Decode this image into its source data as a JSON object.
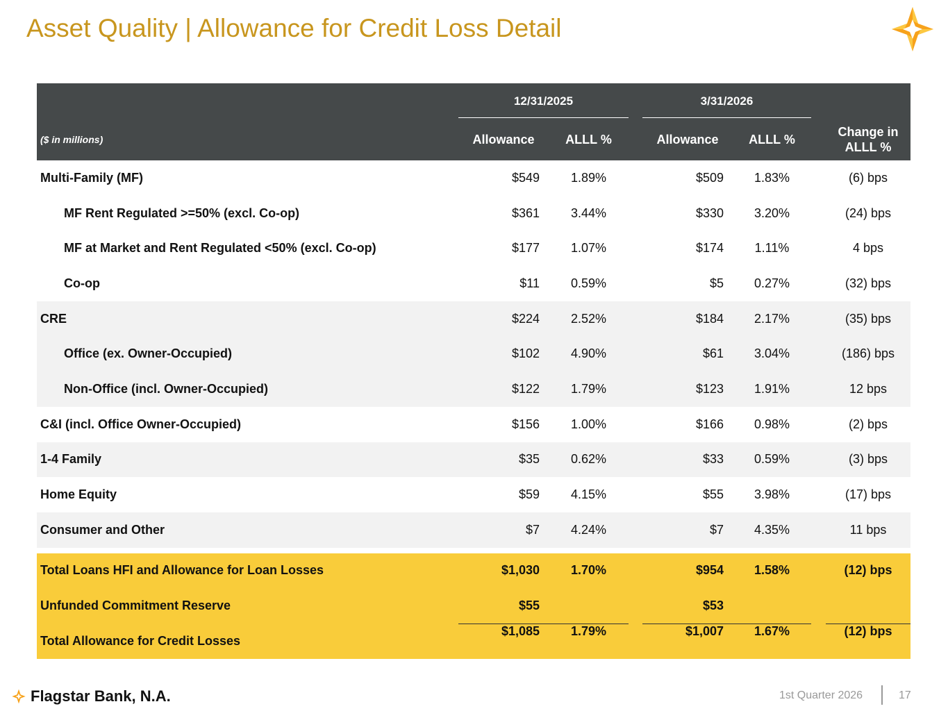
{
  "title": "Asset Quality | Allowance for Credit Loss Detail",
  "header": {
    "units": "($ in millions)",
    "period1": "12/31/2025",
    "period2": "3/31/2026",
    "allowance": "Allowance",
    "alll": "ALLL %",
    "change_line1": "Change in",
    "change_line2": "ALLL %"
  },
  "rows": [
    {
      "label": "Multi-Family (MF)",
      "a1": "$549",
      "p1": "1.89%",
      "a2": "$509",
      "p2": "1.83%",
      "chg": "(6) bps"
    },
    {
      "label": "MF Rent Regulated >=50% (excl. Co-op)",
      "a1": "$361",
      "p1": "3.44%",
      "a2": "$330",
      "p2": "3.20%",
      "chg": "(24) bps"
    },
    {
      "label": "MF at Market and Rent Regulated <50% (excl. Co-op)",
      "a1": "$177",
      "p1": "1.07%",
      "a2": "$174",
      "p2": "1.11%",
      "chg": "4 bps"
    },
    {
      "label": "Co-op",
      "a1": "$11",
      "p1": "0.59%",
      "a2": "$5",
      "p2": "0.27%",
      "chg": "(32) bps"
    },
    {
      "label": "CRE",
      "a1": "$224",
      "p1": "2.52%",
      "a2": "$184",
      "p2": "2.17%",
      "chg": "(35) bps"
    },
    {
      "label": "Office (ex. Owner-Occupied)",
      "a1": "$102",
      "p1": "4.90%",
      "a2": "$61",
      "p2": "3.04%",
      "chg": "(186) bps"
    },
    {
      "label": "Non-Office (incl. Owner-Occupied)",
      "a1": "$122",
      "p1": "1.79%",
      "a2": "$123",
      "p2": "1.91%",
      "chg": "12 bps"
    },
    {
      "label": "C&I (incl. Office Owner-Occupied)",
      "a1": "$156",
      "p1": "1.00%",
      "a2": "$166",
      "p2": "0.98%",
      "chg": "(2) bps"
    },
    {
      "label": "1-4 Family",
      "a1": "$35",
      "p1": "0.62%",
      "a2": "$33",
      "p2": "0.59%",
      "chg": "(3) bps"
    },
    {
      "label": "Home Equity",
      "a1": "$59",
      "p1": "4.15%",
      "a2": "$55",
      "p2": "3.98%",
      "chg": "(17) bps"
    },
    {
      "label": "Consumer and Other",
      "a1": "$7",
      "p1": "4.24%",
      "a2": "$7",
      "p2": "4.35%",
      "chg": "11 bps"
    }
  ],
  "totals": [
    {
      "label": "Total Loans HFI and Allowance for Loan Losses",
      "a1": "$1,030",
      "p1": "1.70%",
      "a2": "$954",
      "p2": "1.58%",
      "chg": "(12) bps"
    },
    {
      "label": "Unfunded Commitment Reserve",
      "a1": "$55",
      "p1": "",
      "a2": "$53",
      "p2": "",
      "chg": ""
    },
    {
      "label": "Total Allowance for Credit Losses",
      "a1": "$1,085",
      "p1": "1.79%",
      "a2": "$1,007",
      "p2": "1.67%",
      "chg": "(12) bps"
    }
  ],
  "footer": {
    "brand": "Flagstar Bank, N.A.",
    "period": "1st Quarter 2026",
    "page": "17"
  }
}
